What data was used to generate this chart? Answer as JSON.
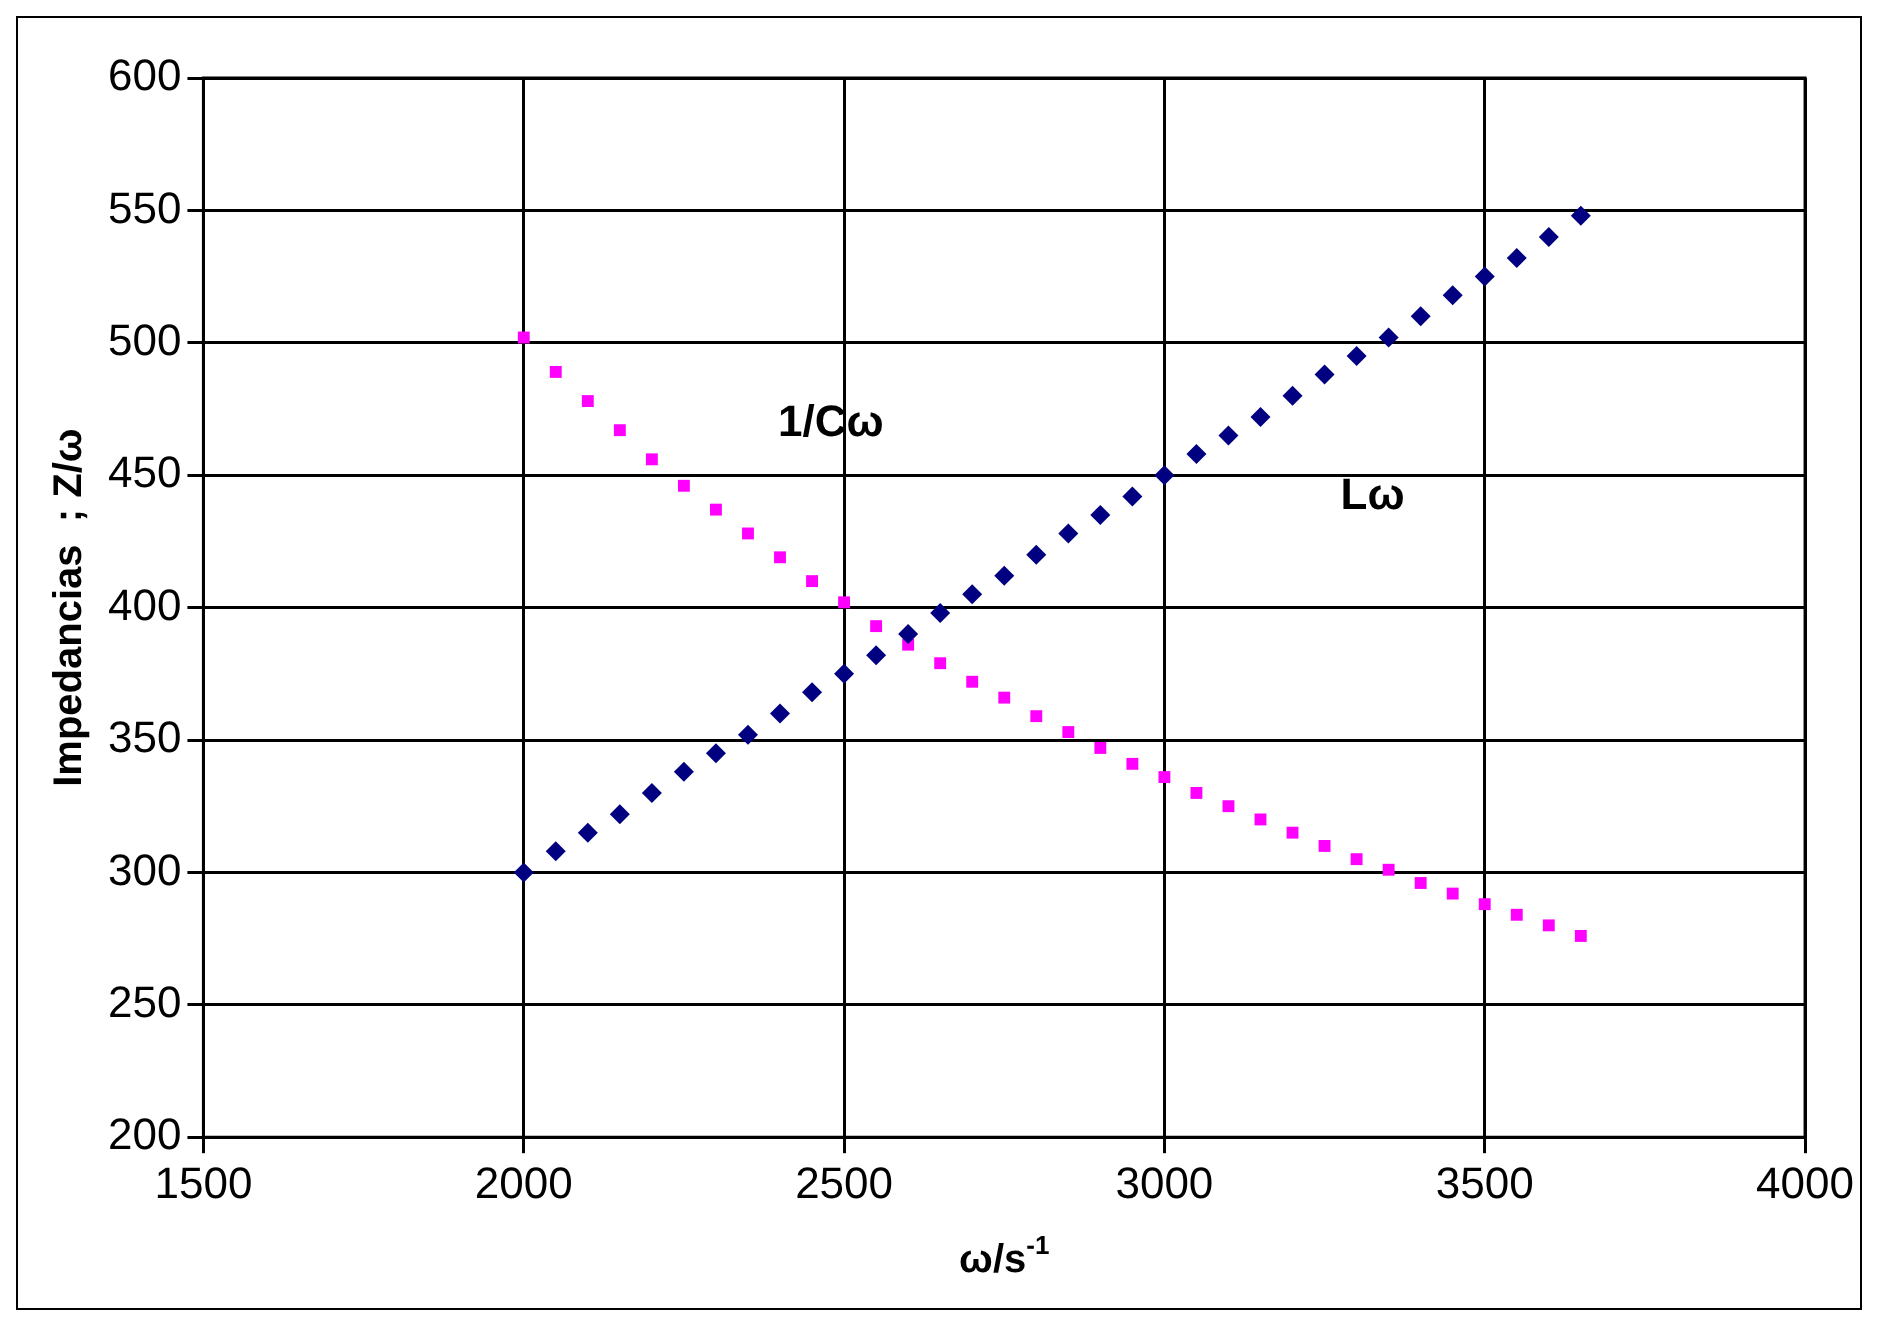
{
  "chart_data": {
    "type": "scatter",
    "xlabel": "ω/s$^{-1}$",
    "ylabel": "Impedancias  ; Z/ω",
    "x": [
      2000,
      2050,
      2100,
      2150,
      2200,
      2250,
      2300,
      2350,
      2400,
      2450,
      2500,
      2550,
      2600,
      2650,
      2700,
      2750,
      2800,
      2850,
      2900,
      2950,
      3000,
      3050,
      3100,
      3150,
      3200,
      3250,
      3300,
      3350,
      3400,
      3450,
      3500,
      3550,
      3600,
      3650
    ],
    "series": [
      {
        "name": "Lω",
        "color": "#000080",
        "marker": "diamond",
        "values": [
          300,
          308,
          315,
          322,
          330,
          338,
          345,
          352,
          360,
          368,
          375,
          382,
          390,
          398,
          405,
          412,
          420,
          428,
          435,
          442,
          450,
          458,
          465,
          472,
          480,
          488,
          495,
          502,
          510,
          518,
          525,
          532,
          540,
          548
        ]
      },
      {
        "name": "1/Cω",
        "color": "#ff00ff",
        "marker": "square",
        "values": [
          502,
          489,
          478,
          467,
          456,
          446,
          437,
          428,
          419,
          410,
          402,
          393,
          386,
          379,
          372,
          366,
          359,
          353,
          347,
          341,
          336,
          330,
          325,
          320,
          315,
          310,
          305,
          301,
          296,
          292,
          288,
          284,
          280,
          276
        ]
      }
    ],
    "xlim": [
      1500,
      4000
    ],
    "xticks": [
      1500,
      2000,
      2500,
      3000,
      3500,
      4000
    ],
    "ylim": [
      200,
      600
    ],
    "yticks": [
      200,
      250,
      300,
      350,
      400,
      450,
      500,
      550,
      600
    ],
    "grid": true,
    "legend": false
  }
}
